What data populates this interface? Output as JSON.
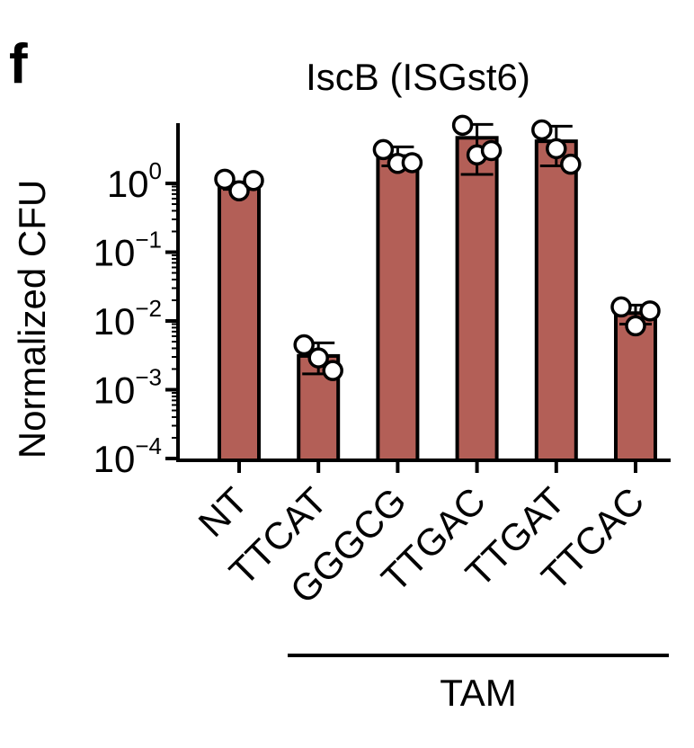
{
  "panel_label": "f",
  "chart_data": {
    "type": "bar",
    "title": "IscB (ISGst6)",
    "ylabel": "Normalized CFU",
    "xlabel": "",
    "yscale": "log",
    "ylim": [
      0.0001,
      6
    ],
    "ytick_values": [
      1,
      0.1,
      0.01,
      0.001,
      0.0001
    ],
    "ytick_labels": [
      {
        "base": "10",
        "exp": "0"
      },
      {
        "base": "10",
        "exp": "−1"
      },
      {
        "base": "10",
        "exp": "−2"
      },
      {
        "base": "10",
        "exp": "−3"
      },
      {
        "base": "10",
        "exp": "−4"
      }
    ],
    "categories": [
      "NT",
      "TTCAT",
      "GGGCG",
      "TTGAC",
      "TTGAT",
      "TTCAC"
    ],
    "values": [
      0.95,
      0.0031,
      2.5,
      4.6,
      4.1,
      0.013
    ],
    "error_low": [
      0.82,
      0.0017,
      1.8,
      1.35,
      1.8,
      0.009
    ],
    "error_high": [
      1.05,
      0.0048,
      3.4,
      7.2,
      6.8,
      0.017
    ],
    "points": [
      [
        1.15,
        0.78,
        1.1
      ],
      [
        0.0045,
        0.0029,
        0.0019
      ],
      [
        3.1,
        1.95,
        2.0
      ],
      [
        7.0,
        2.6,
        3.0
      ],
      [
        6.0,
        3.2,
        1.9
      ],
      [
        0.016,
        0.0085,
        0.014
      ]
    ],
    "bar_color": "#b35f57",
    "point_fill": "#ffffff",
    "group": {
      "label": "TAM",
      "from": "TTCAT",
      "to": "TTCAC"
    },
    "grid": false,
    "legend": "none"
  }
}
